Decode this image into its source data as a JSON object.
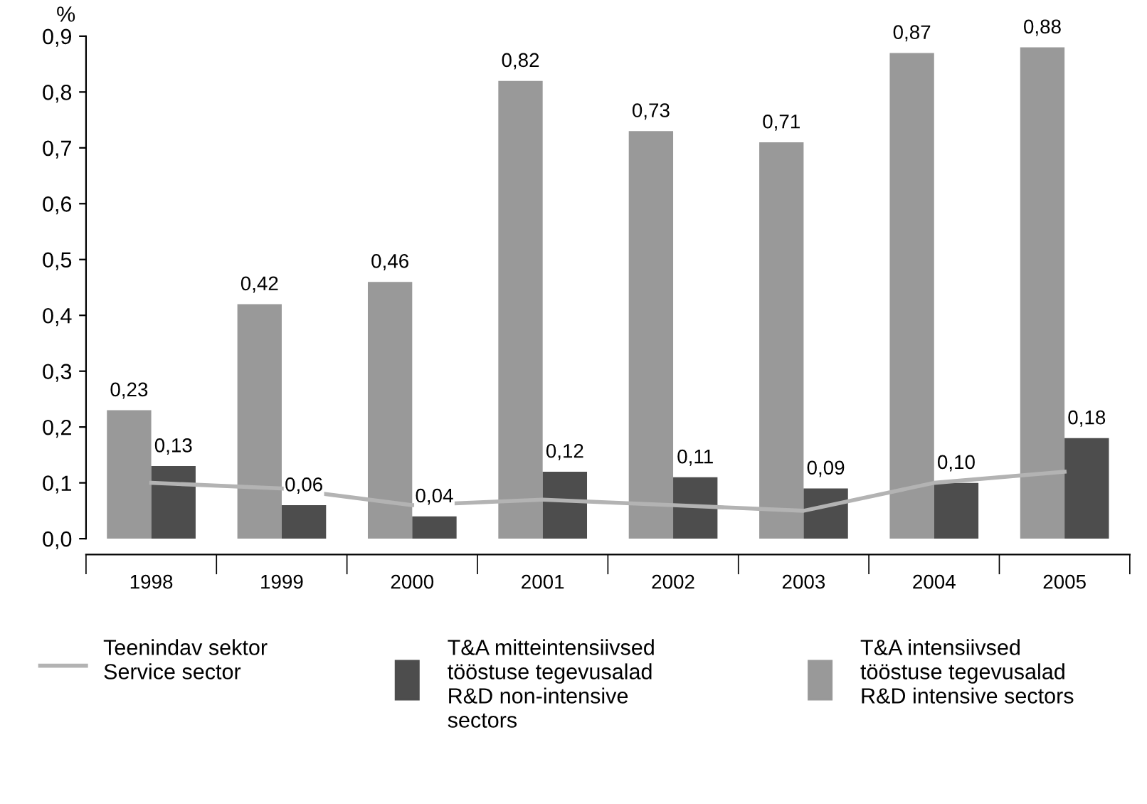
{
  "chart_data": {
    "type": "bar",
    "ylabel": "%",
    "categories": [
      "1998",
      "1999",
      "2000",
      "2001",
      "2002",
      "2003",
      "2004",
      "2005"
    ],
    "series": [
      {
        "name": "T&A intensiivsed\ntööstuse tegevusalad\nR&D intensive sectors",
        "color": "#999999",
        "values": [
          0.23,
          0.42,
          0.46,
          0.82,
          0.73,
          0.71,
          0.87,
          0.88
        ],
        "value_labels": [
          "0,23",
          "0,42",
          "0,46",
          "0,82",
          "0,73",
          "0,71",
          "0,87",
          "0,88"
        ]
      },
      {
        "name": "T&A mitteintensiivsed\ntööstuse tegevusalad\nR&D non-intensive\nsectors",
        "color": "#4d4d4d",
        "values": [
          0.13,
          0.06,
          0.04,
          0.12,
          0.11,
          0.09,
          0.1,
          0.18
        ],
        "value_labels": [
          "0,13",
          "0,06",
          "0,04",
          "0,12",
          "0,11",
          "0,09",
          "0,10",
          "0,18"
        ]
      },
      {
        "name": "Teenindav sektor\nService sector",
        "type": "line",
        "color": "#b3b3b3",
        "values": [
          0.1,
          0.09,
          0.06,
          0.07,
          0.06,
          0.05,
          0.1,
          0.12
        ]
      }
    ],
    "ylim": [
      0,
      0.9
    ],
    "yticks": [
      {
        "value": 0,
        "label": "0,0"
      },
      {
        "value": 0.1,
        "label": "0,1"
      },
      {
        "value": 0.2,
        "label": "0,2"
      },
      {
        "value": 0.3,
        "label": "0,3"
      },
      {
        "value": 0.4,
        "label": "0,4"
      },
      {
        "value": 0.5,
        "label": "0,5"
      },
      {
        "value": 0.6,
        "label": "0,6"
      },
      {
        "value": 0.7,
        "label": "0,7"
      },
      {
        "value": 0.8,
        "label": "0,8"
      },
      {
        "value": 0.9,
        "label": "0,9"
      }
    ],
    "grid": false,
    "legend": "bottom",
    "marker": "none"
  }
}
